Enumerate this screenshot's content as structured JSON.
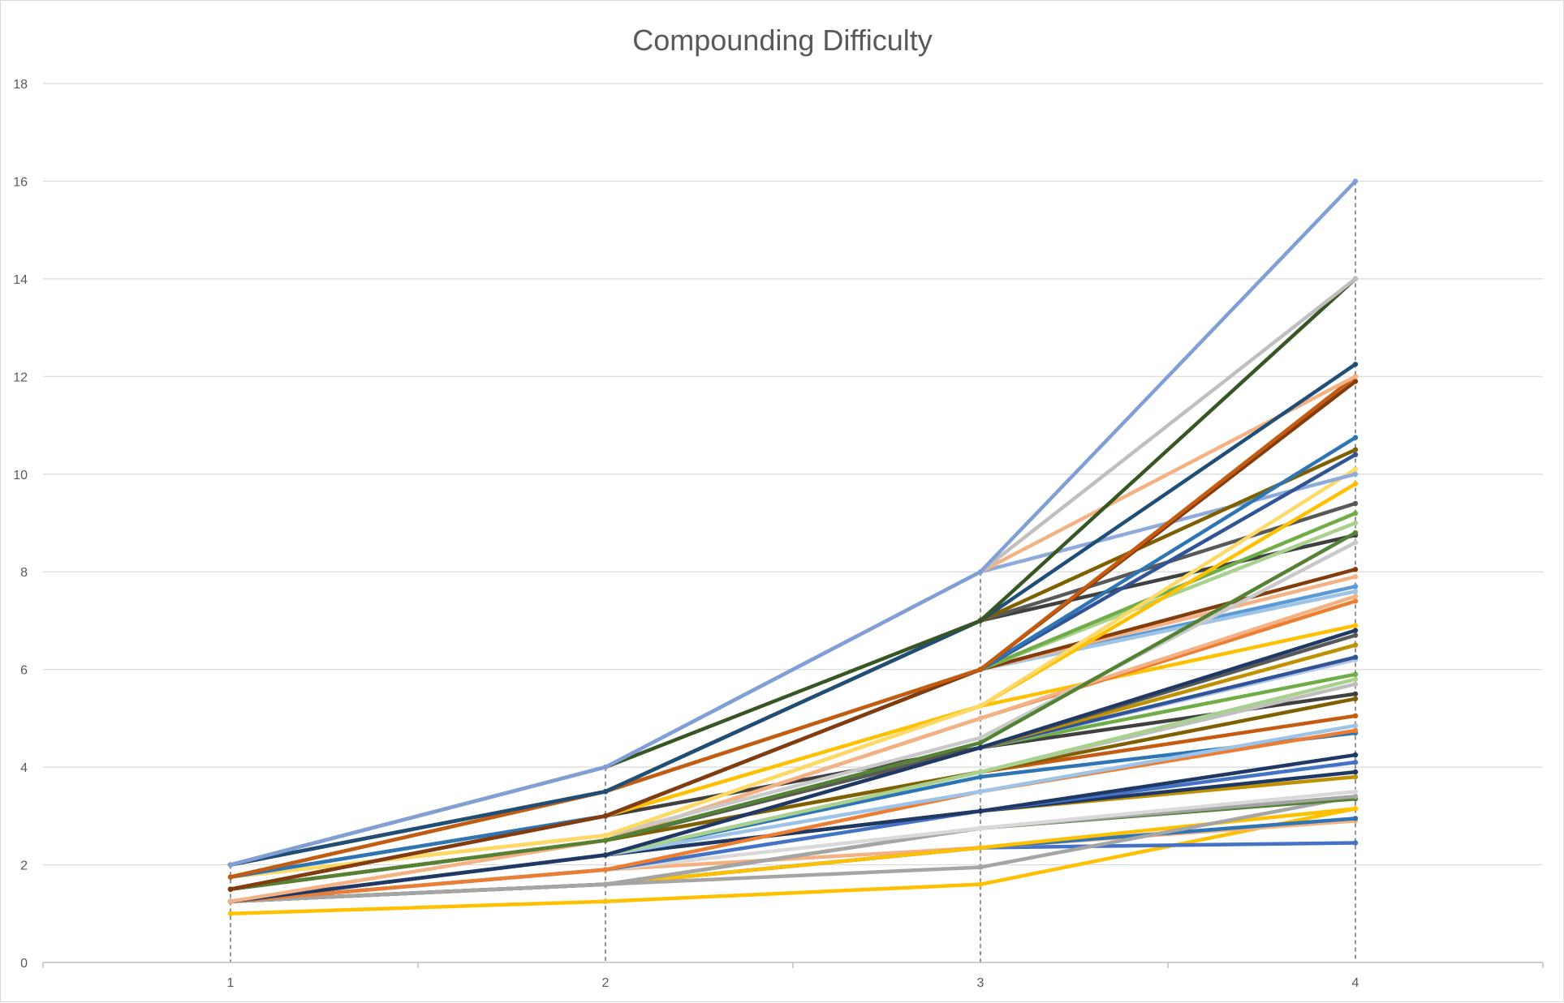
{
  "chart_data": {
    "type": "line",
    "title": "Compounding Difficulty",
    "xlabel": "",
    "ylabel": "",
    "categories": [
      "1",
      "2",
      "3",
      "4"
    ],
    "x": [
      1,
      2,
      3,
      4
    ],
    "ylim": [
      0,
      18
    ],
    "yticks": [
      0,
      2,
      4,
      6,
      8,
      10,
      12,
      14,
      16,
      18
    ],
    "grid": "horizontal",
    "drop_lines": true,
    "legend": "none",
    "series": [
      {
        "values": [
          2,
          4,
          8,
          16
        ],
        "color": "#7f9fd6"
      },
      {
        "values": [
          2,
          4,
          8,
          14
        ],
        "color": "#bfbfbf"
      },
      {
        "values": [
          2,
          4,
          7,
          14
        ],
        "color": "#375623"
      },
      {
        "values": [
          2,
          3.5,
          7,
          12.25
        ],
        "color": "#1f4e79"
      },
      {
        "values": [
          2,
          4,
          8,
          12
        ],
        "color": "#f4b183"
      },
      {
        "values": [
          1.75,
          3.5,
          6,
          12
        ],
        "color": "#c55a11"
      },
      {
        "values": [
          1.5,
          3,
          6,
          11.9
        ],
        "color": "#843c0c"
      },
      {
        "values": [
          1.75,
          3,
          6,
          10.75
        ],
        "color": "#2e75b6"
      },
      {
        "values": [
          2,
          3.5,
          7,
          10.5
        ],
        "color": "#7f6000"
      },
      {
        "values": [
          1.5,
          3,
          6,
          10.4
        ],
        "color": "#305496"
      },
      {
        "values": [
          2,
          4,
          8,
          10
        ],
        "color": "#8eaadb"
      },
      {
        "values": [
          1.75,
          2.6,
          5.25,
          10.1
        ],
        "color": "#ffd966"
      },
      {
        "values": [
          1.75,
          2.6,
          5.25,
          9.8
        ],
        "color": "#ffc000"
      },
      {
        "values": [
          2,
          3.5,
          7,
          9.4
        ],
        "color": "#595959"
      },
      {
        "values": [
          1.75,
          3.5,
          6,
          9.2
        ],
        "color": "#70ad47"
      },
      {
        "values": [
          1.75,
          3.5,
          6,
          9
        ],
        "color": "#a9d18e"
      },
      {
        "values": [
          1.5,
          2.5,
          4.5,
          8.8
        ],
        "color": "#548235"
      },
      {
        "values": [
          2,
          3.5,
          7,
          8.75
        ],
        "color": "#404040"
      },
      {
        "values": [
          1.75,
          2.6,
          4.6,
          8.6
        ],
        "color": "#c9c9c9"
      },
      {
        "values": [
          1.5,
          3,
          6,
          8.05
        ],
        "color": "#843c0c"
      },
      {
        "values": [
          1.5,
          3,
          6,
          7.9
        ],
        "color": "#f4b183"
      },
      {
        "values": [
          1.75,
          3.5,
          6,
          7.6
        ],
        "color": "#9dc3e6"
      },
      {
        "values": [
          1.75,
          3,
          6,
          7.7
        ],
        "color": "#5b9bd5"
      },
      {
        "values": [
          1.25,
          2.5,
          5,
          7.5
        ],
        "color": "#f4b183"
      },
      {
        "values": [
          1.5,
          2.5,
          5,
          7.4
        ],
        "color": "#ed7d31"
      },
      {
        "values": [
          1.75,
          3,
          5.25,
          6.9
        ],
        "color": "#ffc000"
      },
      {
        "values": [
          1.25,
          2.2,
          4.4,
          6.8
        ],
        "color": "#203864"
      },
      {
        "values": [
          1.5,
          2.5,
          4.4,
          6.7
        ],
        "color": "#595959"
      },
      {
        "values": [
          1.5,
          2.5,
          4.4,
          6.5
        ],
        "color": "#bf9000"
      },
      {
        "values": [
          1.25,
          2.2,
          4.4,
          6.25
        ],
        "color": "#2f5597"
      },
      {
        "values": [
          1.25,
          2.2,
          4.4,
          6.2
        ],
        "color": "#b4c7e7"
      },
      {
        "values": [
          1.5,
          2.5,
          4.4,
          5.9
        ],
        "color": "#70ad47"
      },
      {
        "values": [
          1.25,
          2.2,
          3.9,
          5.8
        ],
        "color": "#a9d18e"
      },
      {
        "values": [
          1.25,
          2.2,
          3.9,
          5.7
        ],
        "color": "#bfbfbf"
      },
      {
        "values": [
          1.5,
          3,
          4.4,
          5.5
        ],
        "color": "#404040"
      },
      {
        "values": [
          1.5,
          2.5,
          3.9,
          5.4
        ],
        "color": "#7f6000"
      },
      {
        "values": [
          1.5,
          2.5,
          3.9,
          5.05
        ],
        "color": "#c55a11"
      },
      {
        "values": [
          1.25,
          2.2,
          3.5,
          4.85
        ],
        "color": "#9dc3e6"
      },
      {
        "values": [
          1.25,
          1.9,
          3.5,
          4.75
        ],
        "color": "#ed7d31"
      },
      {
        "values": [
          1.25,
          2.2,
          3.8,
          4.7
        ],
        "color": "#2e75b6"
      },
      {
        "values": [
          1.25,
          2.2,
          3.1,
          4.25
        ],
        "color": "#203864"
      },
      {
        "values": [
          1.25,
          1.9,
          3.1,
          4.1
        ],
        "color": "#4472c4"
      },
      {
        "values": [
          1.25,
          2.2,
          3.1,
          3.9
        ],
        "color": "#1f3864"
      },
      {
        "values": [
          1.25,
          2.2,
          3.1,
          3.8
        ],
        "color": "#bf9000"
      },
      {
        "values": [
          1.25,
          1.9,
          2.75,
          3.5
        ],
        "color": "#d9d9d9"
      },
      {
        "values": [
          1.25,
          1.6,
          2.75,
          3.4
        ],
        "color": "#a5a5a5"
      },
      {
        "values": [
          1.25,
          1.6,
          2.75,
          3.35
        ],
        "color": "#548235"
      },
      {
        "values": [
          1.25,
          1.6,
          1.95,
          3.4
        ],
        "color": "#a5a5a5"
      },
      {
        "values": [
          1.25,
          1.6,
          2.35,
          3.15
        ],
        "color": "#ffc000"
      },
      {
        "values": [
          1.25,
          1.6,
          2.35,
          2.95
        ],
        "color": "#2e75b6"
      },
      {
        "values": [
          1.25,
          1.9,
          2.35,
          2.9
        ],
        "color": "#f4b183"
      },
      {
        "values": [
          1.25,
          1.6,
          2.35,
          2.45
        ],
        "color": "#4472c4"
      },
      {
        "values": [
          1,
          1.25,
          1.6,
          3.15
        ],
        "color": "#ffc000"
      }
    ]
  }
}
